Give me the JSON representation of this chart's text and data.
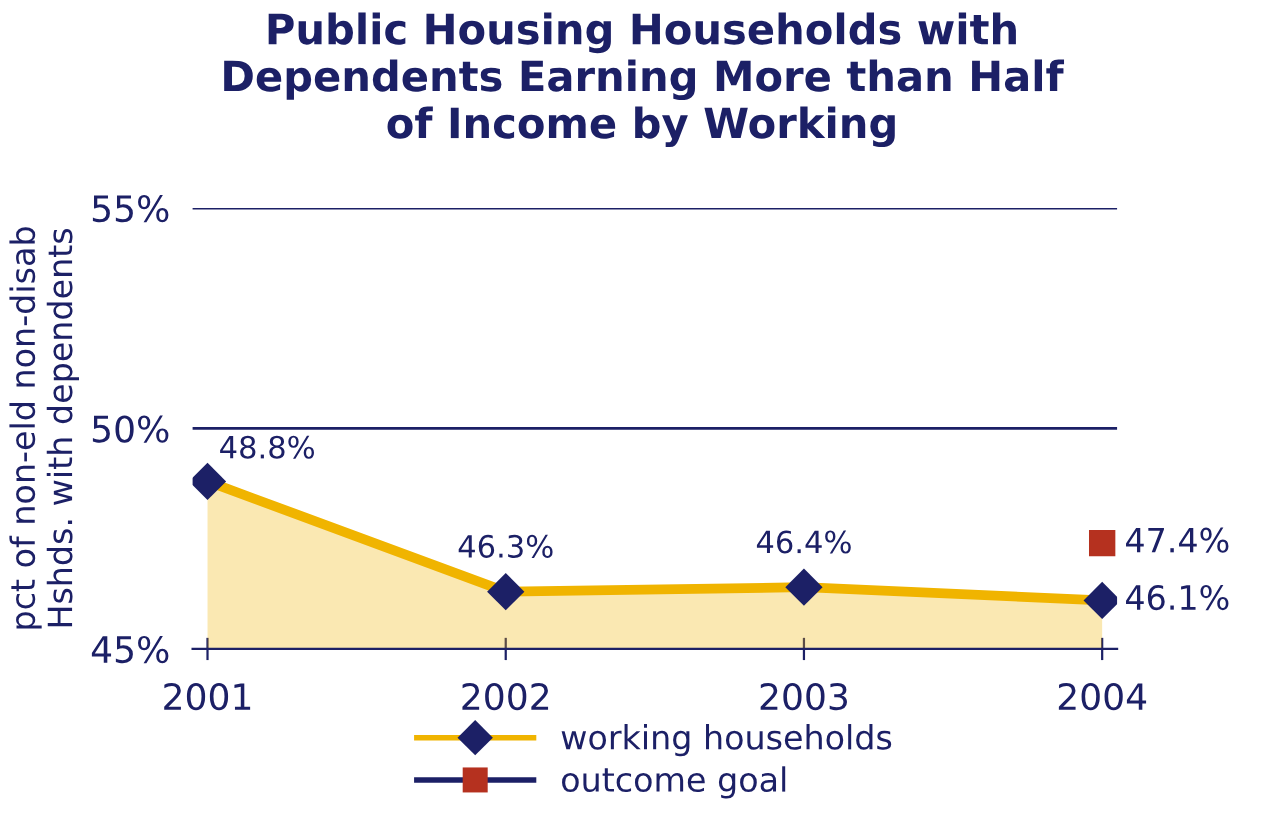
{
  "chart_data": {
    "type": "area",
    "title": "Public Housing Households with\nDependents Earning More than Half\nof Income by Working",
    "ylabel": "pct of non-eld non-disab\nHshds. with dependents",
    "categories": [
      "2001",
      "2002",
      "2003",
      "2004"
    ],
    "series": [
      {
        "name": "working households",
        "color": "#f0b400",
        "colors": [
          "#1c2066",
          "#1c2066",
          "#1c2066",
          "#1c2066"
        ],
        "marker": "diamond",
        "values": [
          48.8,
          46.3,
          46.4,
          46.1
        ],
        "value_labels": [
          "48.8%",
          "46.3%",
          "46.4%",
          "46.1%"
        ]
      },
      {
        "name": "outcome goal",
        "type": "scatter",
        "color": "#b5311f",
        "marker": "square",
        "values": [
          null,
          null,
          null,
          47.4
        ],
        "value_labels": [
          null,
          null,
          null,
          "47.4%"
        ]
      }
    ],
    "ylim": [
      45,
      55
    ],
    "yticks": [
      {
        "value": 45,
        "label": "45%"
      },
      {
        "value": 50,
        "label": "50%"
      },
      {
        "value": 55,
        "label": "55%"
      }
    ],
    "ref_lines": [
      {
        "axis": "y",
        "value": 50,
        "color": "#1c2066"
      },
      {
        "axis": "y",
        "value": 55,
        "color": "#1c2066"
      }
    ],
    "legend": "bottom"
  }
}
